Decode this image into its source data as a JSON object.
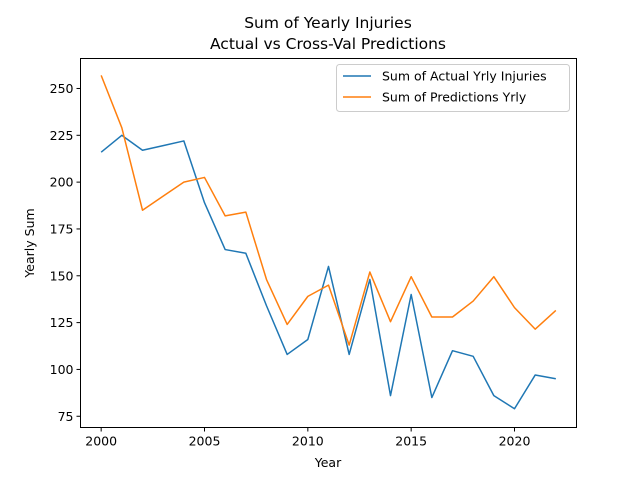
{
  "chart_data": {
    "type": "line",
    "title": "Sum of Yearly Injuries",
    "subtitle": "Actual vs Cross-Val Predictions",
    "xlabel": "Year",
    "ylabel": "Yearly Sum",
    "xlim": [
      1999,
      2023
    ],
    "ylim": [
      69,
      266
    ],
    "xticks": [
      2000,
      2005,
      2010,
      2015,
      2020
    ],
    "yticks": [
      75,
      100,
      125,
      150,
      175,
      200,
      225,
      250
    ],
    "grid": false,
    "legend_position": "top-right",
    "x": [
      2000,
      2001,
      2002,
      2003,
      2004,
      2005,
      2006,
      2007,
      2008,
      2009,
      2010,
      2011,
      2012,
      2013,
      2014,
      2015,
      2016,
      2017,
      2018,
      2019,
      2020,
      2021,
      2022
    ],
    "series": [
      {
        "name": "Sum of Actual Yrly Injuries",
        "color": "#1f77b4",
        "values": [
          216,
          225,
          217,
          219.5,
          222,
          189,
          164,
          162,
          134,
          108,
          116,
          155,
          108,
          148,
          86,
          140,
          85,
          110,
          107,
          86,
          79,
          97,
          95
        ]
      },
      {
        "name": "Sum of Predictions Yrly",
        "color": "#ff7f0e",
        "values": [
          257,
          229,
          185,
          192.5,
          200,
          202.5,
          182,
          184,
          148,
          124,
          139,
          145,
          113,
          152,
          125.5,
          149.5,
          128,
          128,
          136.5,
          149.5,
          133,
          121.5,
          131.5
        ]
      }
    ]
  }
}
